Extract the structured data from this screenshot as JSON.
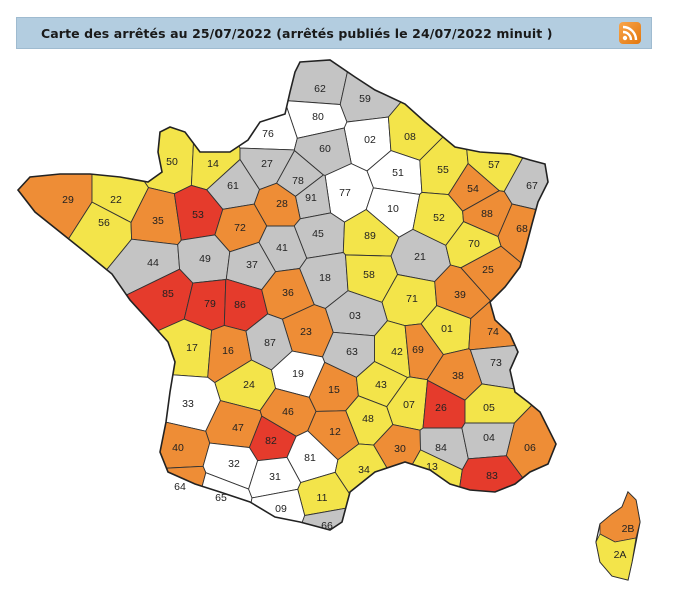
{
  "header": {
    "title": "Carte des arrêtés au 25/07/2022 (arrêtés publiés le 24/07/2022 minuit )",
    "rss_icon": "rss-feed-icon"
  },
  "colors": {
    "crise": "#e53b2c",
    "alerte_renforcee": "#ee8d36",
    "alerte": "#f3e44a",
    "vigilance": "#c4c4c4",
    "aucun": "#ffffff",
    "header_bg": "#b3cde0"
  },
  "departments": [
    {
      "code": "62",
      "level": "vigilance"
    },
    {
      "code": "59",
      "level": "vigilance"
    },
    {
      "code": "80",
      "level": "aucun"
    },
    {
      "code": "76",
      "level": "aucun"
    },
    {
      "code": "02",
      "level": "aucun"
    },
    {
      "code": "08",
      "level": "alerte"
    },
    {
      "code": "60",
      "level": "vigilance"
    },
    {
      "code": "50",
      "level": "alerte"
    },
    {
      "code": "14",
      "level": "alerte"
    },
    {
      "code": "27",
      "level": "vigilance"
    },
    {
      "code": "51",
      "level": "aucun"
    },
    {
      "code": "55",
      "level": "alerte"
    },
    {
      "code": "57",
      "level": "alerte"
    },
    {
      "code": "67",
      "level": "vigilance"
    },
    {
      "code": "61",
      "level": "vigilance"
    },
    {
      "code": "78",
      "level": "vigilance"
    },
    {
      "code": "77",
      "level": "aucun"
    },
    {
      "code": "54",
      "level": "alerte_renforcee"
    },
    {
      "code": "29",
      "level": "alerte_renforcee"
    },
    {
      "code": "22",
      "level": "alerte"
    },
    {
      "code": "91",
      "level": "vigilance"
    },
    {
      "code": "10",
      "level": "aucun"
    },
    {
      "code": "52",
      "level": "alerte"
    },
    {
      "code": "88",
      "level": "alerte_renforcee"
    },
    {
      "code": "68",
      "level": "alerte_renforcee"
    },
    {
      "code": "56",
      "level": "alerte"
    },
    {
      "code": "35",
      "level": "alerte_renforcee"
    },
    {
      "code": "53",
      "level": "crise"
    },
    {
      "code": "28",
      "level": "alerte_renforcee"
    },
    {
      "code": "45",
      "level": "vigilance"
    },
    {
      "code": "89",
      "level": "alerte"
    },
    {
      "code": "72",
      "level": "alerte_renforcee"
    },
    {
      "code": "21",
      "level": "vigilance"
    },
    {
      "code": "70",
      "level": "alerte"
    },
    {
      "code": "44",
      "level": "vigilance"
    },
    {
      "code": "49",
      "level": "vigilance"
    },
    {
      "code": "37",
      "level": "vigilance"
    },
    {
      "code": "41",
      "level": "vigilance"
    },
    {
      "code": "25",
      "level": "alerte_renforcee"
    },
    {
      "code": "18",
      "level": "vigilance"
    },
    {
      "code": "58",
      "level": "alerte"
    },
    {
      "code": "85",
      "level": "crise"
    },
    {
      "code": "79",
      "level": "crise"
    },
    {
      "code": "86",
      "level": "crise"
    },
    {
      "code": "36",
      "level": "alerte_renforcee"
    },
    {
      "code": "71",
      "level": "alerte"
    },
    {
      "code": "39",
      "level": "alerte_renforcee"
    },
    {
      "code": "03",
      "level": "vigilance"
    },
    {
      "code": "01",
      "level": "alerte"
    },
    {
      "code": "74",
      "level": "alerte_renforcee"
    },
    {
      "code": "23",
      "level": "alerte_renforcee"
    },
    {
      "code": "17",
      "level": "alerte"
    },
    {
      "code": "16",
      "level": "alerte_renforcee"
    },
    {
      "code": "87",
      "level": "vigilance"
    },
    {
      "code": "63",
      "level": "vigilance"
    },
    {
      "code": "42",
      "level": "alerte"
    },
    {
      "code": "69",
      "level": "alerte_renforcee"
    },
    {
      "code": "73",
      "level": "vigilance"
    },
    {
      "code": "19",
      "level": "aucun"
    },
    {
      "code": "38",
      "level": "alerte_renforcee"
    },
    {
      "code": "24",
      "level": "alerte"
    },
    {
      "code": "15",
      "level": "alerte_renforcee"
    },
    {
      "code": "43",
      "level": "alerte"
    },
    {
      "code": "33",
      "level": "aucun"
    },
    {
      "code": "46",
      "level": "alerte_renforcee"
    },
    {
      "code": "07",
      "level": "alerte"
    },
    {
      "code": "26",
      "level": "crise"
    },
    {
      "code": "05",
      "level": "alerte"
    },
    {
      "code": "47",
      "level": "alerte_renforcee"
    },
    {
      "code": "48",
      "level": "alerte"
    },
    {
      "code": "12",
      "level": "alerte_renforcee"
    },
    {
      "code": "40",
      "level": "alerte_renforcee"
    },
    {
      "code": "82",
      "level": "crise"
    },
    {
      "code": "30",
      "level": "alerte_renforcee"
    },
    {
      "code": "84",
      "level": "vigilance"
    },
    {
      "code": "04",
      "level": "vigilance"
    },
    {
      "code": "06",
      "level": "alerte_renforcee"
    },
    {
      "code": "32",
      "level": "aucun"
    },
    {
      "code": "81",
      "level": "aucun"
    },
    {
      "code": "34",
      "level": "alerte"
    },
    {
      "code": "13",
      "level": "alerte"
    },
    {
      "code": "83",
      "level": "crise"
    },
    {
      "code": "64",
      "level": "alerte_renforcee"
    },
    {
      "code": "65",
      "level": "aucun"
    },
    {
      "code": "31",
      "level": "aucun"
    },
    {
      "code": "11",
      "level": "alerte"
    },
    {
      "code": "09",
      "level": "aucun"
    },
    {
      "code": "66",
      "level": "vigilance"
    },
    {
      "code": "2B",
      "level": "alerte_renforcee"
    },
    {
      "code": "2A",
      "level": "alerte"
    }
  ]
}
